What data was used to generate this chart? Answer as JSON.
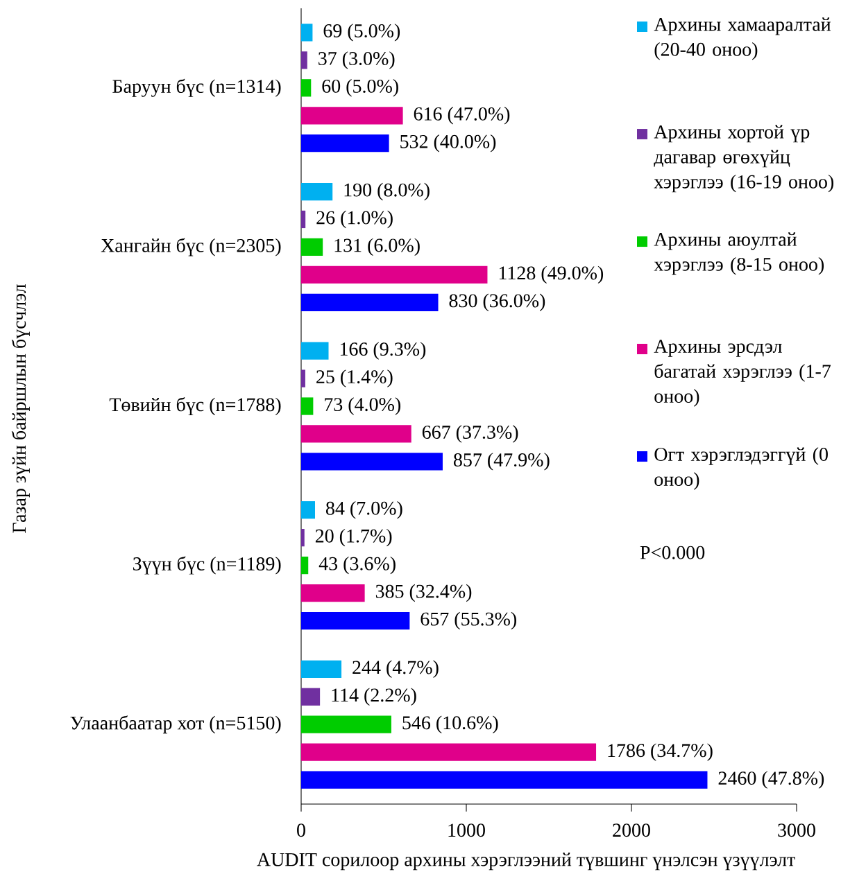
{
  "chart_data": {
    "type": "bar",
    "orientation": "horizontal",
    "xlabel": "AUDIT сорилоор архины хэрэглээний түвшинг үнэлсэн үзүүлэлт",
    "ylabel": "Газар зүйн байршлын бүсчлэл",
    "categories": [
      "Баруун бүс (n=1314)",
      "Хангайн бүс (n=2305)",
      "Төвийн бүс (n=1788)",
      "Зүүн бүс (n=1189)",
      "Улаанбаатар хот (n=5150)"
    ],
    "series": [
      {
        "name": "Архины хамааралтай (20-40 оноо)",
        "color": "#00b0f0",
        "values": [
          69,
          190,
          166,
          84,
          244
        ],
        "value_labels": [
          "69 (5.0%)",
          "190 (8.0%)",
          "166 (9.3%)",
          "84 (7.0%)",
          "244 (4.7%)"
        ]
      },
      {
        "name": "Архины хортой үр дагавар өгөхүйц хэрэглээ (16-19 оноо)",
        "color": "#7030a0",
        "values": [
          37,
          26,
          25,
          20,
          114
        ],
        "value_labels": [
          "37 (3.0%)",
          "26 (1.0%)",
          "25 (1.4%)",
          "20 (1.7%)",
          "114 (2.2%)"
        ]
      },
      {
        "name": "Архины аюултай хэрэглээ (8-15 оноо)",
        "color": "#00cc00",
        "values": [
          60,
          131,
          73,
          43,
          546
        ],
        "value_labels": [
          "60 (5.0%)",
          "131 (6.0%)",
          "73 (4.0%)",
          "43 (3.6%)",
          "546 (10.6%)"
        ]
      },
      {
        "name": "Архины эрсдэл багатай хэрэглээ (1-7 оноо)",
        "color": "#e0008a",
        "values": [
          616,
          1128,
          667,
          385,
          1786
        ],
        "value_labels": [
          "616 (47.0%)",
          "1128 (49.0%)",
          "667 (37.3%)",
          "385 (32.4%)",
          "1786 (34.7%)"
        ]
      },
      {
        "name": "Огт хэрэглэдэггүй (0 оноо)",
        "color": "#0000ff",
        "values": [
          532,
          830,
          857,
          657,
          2460
        ],
        "value_labels": [
          "532 (40.0%)",
          "830 (36.0%)",
          "857 (47.9%)",
          "657 (55.3%)",
          "2460 (47.8%)"
        ]
      }
    ],
    "xlim": [
      0,
      3000
    ],
    "xticks": [
      0,
      1000,
      2000,
      3000
    ],
    "annotations": [
      "P<0.000"
    ],
    "legend": "top right",
    "grid": false
  }
}
